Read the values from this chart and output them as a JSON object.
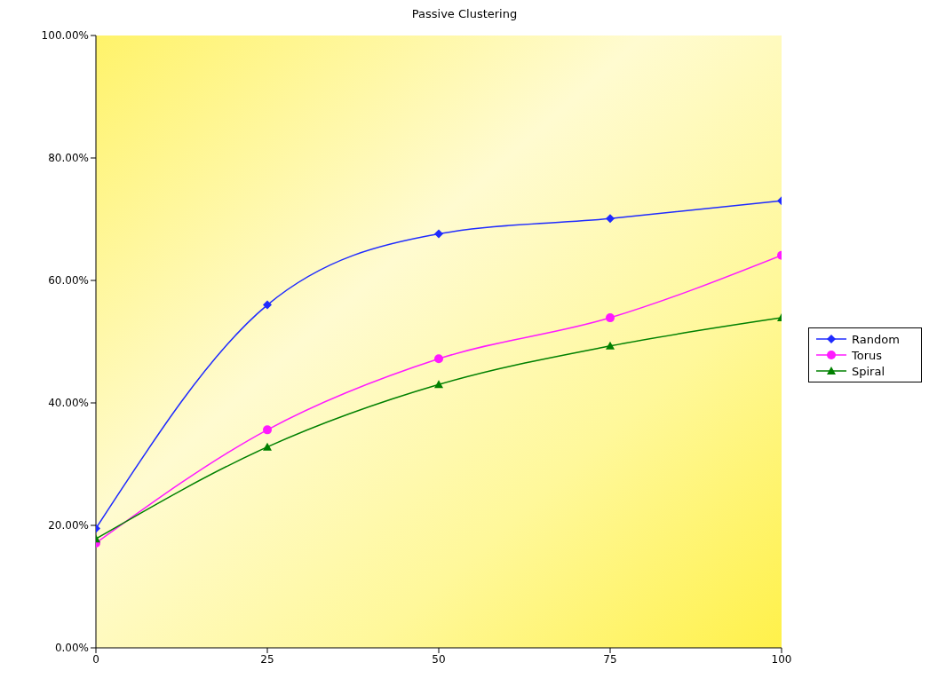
{
  "chart_data": {
    "type": "line",
    "title": "Passive Clustering",
    "x": [
      0,
      25,
      50,
      75,
      100
    ],
    "series": [
      {
        "name": "Random",
        "color": "#1f2bff",
        "marker": "diamond",
        "values": [
          19.5,
          56.0,
          67.6,
          70.1,
          73.0
        ]
      },
      {
        "name": "Torus",
        "color": "#ff1aff",
        "marker": "circle",
        "values": [
          17.1,
          35.6,
          47.2,
          53.9,
          64.1
        ]
      },
      {
        "name": "Spiral",
        "color": "#008000",
        "marker": "triangle",
        "values": [
          17.8,
          32.8,
          43.0,
          49.3,
          53.9
        ]
      }
    ],
    "xlim": [
      0,
      100
    ],
    "xticks": [
      0,
      25,
      50,
      75,
      100
    ],
    "ylim": [
      0,
      100
    ],
    "yticks": [
      {
        "value": 0,
        "label": "0.00%"
      },
      {
        "value": 20,
        "label": "20.00%"
      },
      {
        "value": 40,
        "label": "40.00%"
      },
      {
        "value": 60,
        "label": "60.00%"
      },
      {
        "value": 80,
        "label": "80.00%"
      },
      {
        "value": 100,
        "label": "100.00%"
      }
    ],
    "grid": false,
    "legend": "right",
    "line_style": "solid"
  }
}
